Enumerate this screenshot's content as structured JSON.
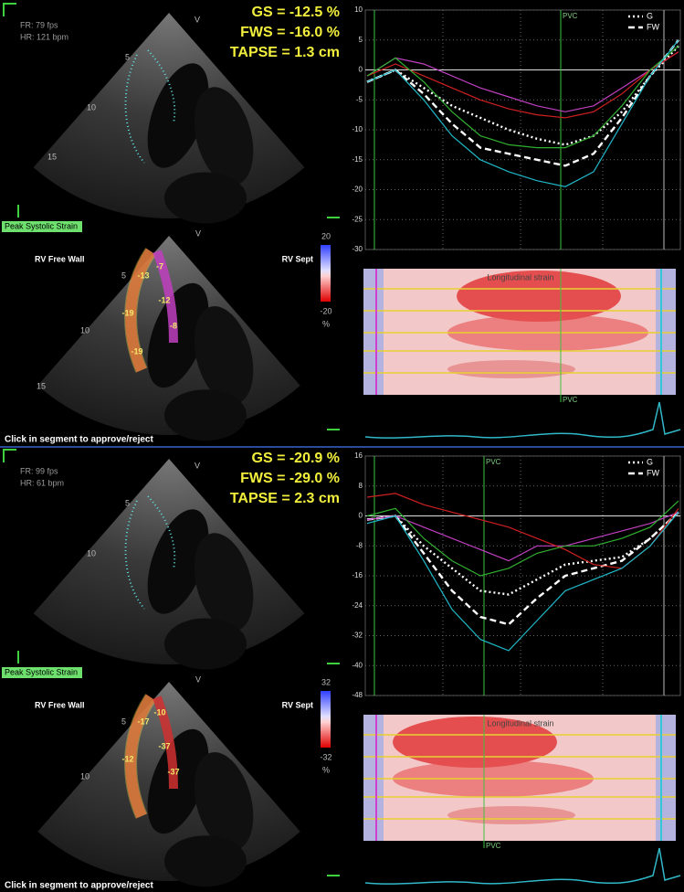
{
  "panels": [
    {
      "fr": "FR: 79 fps",
      "hr": "HR: 121 bpm",
      "gs": "GS = -12.5 %",
      "fws": "FWS = -16.0 %",
      "tapse": "TAPSE = 1.3 cm",
      "depth_labels_a": [
        "5",
        "10",
        "15"
      ],
      "depth_labels_b": [
        "5",
        "10",
        "15"
      ],
      "view_labels": [
        "V",
        "V"
      ],
      "strain_button": "Peak Systolic Strain",
      "free_wall": "RV Free Wall",
      "septum": "RV Sept",
      "colorbar": {
        "max": "20",
        "min": "-20",
        "unit": "%"
      },
      "segments": [
        "-13",
        "-7",
        "-12",
        "-19",
        "-8",
        "-19"
      ],
      "footer": "Click in segment to approve/reject",
      "strain_chart": {
        "type": "line",
        "ylim": [
          -30,
          10
        ],
        "yticks": [
          10,
          5,
          0,
          -5,
          -10,
          -15,
          -20,
          -25,
          -30
        ],
        "marker": "PVC",
        "series": [
          {
            "name": "G",
            "color": "#ffffff",
            "line_style": "dotted",
            "values": [
              -2,
              0,
              -3,
              -6,
              -8,
              -10,
              -11.5,
              -12.5,
              -11,
              -7,
              -1,
              4
            ]
          },
          {
            "name": "FW",
            "color": "#ffffff",
            "line_style": "dashed",
            "values": [
              -2,
              0,
              -4,
              -9,
              -13,
              -14,
              -15,
              -16,
              -14,
              -8,
              -1,
              5
            ]
          },
          {
            "color": "#c040c0",
            "line_style": "solid",
            "values": [
              -1,
              2,
              1,
              -1,
              -3,
              -4.5,
              -6,
              -7,
              -6,
              -3,
              0,
              3
            ]
          },
          {
            "color": "#d02020",
            "line_style": "solid",
            "values": [
              -1,
              1,
              -1,
              -3,
              -5,
              -6.5,
              -7.5,
              -8,
              -7,
              -4,
              0,
              3
            ]
          },
          {
            "color": "#30b030",
            "line_style": "solid",
            "values": [
              -1,
              2,
              -2,
              -7,
              -11,
              -12.5,
              -13,
              -13,
              -11,
              -6,
              0,
              4
            ]
          },
          {
            "color": "#20b8c8",
            "line_style": "solid",
            "values": [
              -2,
              0,
              -5,
              -11,
              -15,
              -17,
              -18.5,
              -19.5,
              -17,
              -9,
              -1,
              5
            ]
          }
        ]
      },
      "heatmap": {
        "title": "Longitudinal strain",
        "marker": "PVC"
      }
    },
    {
      "fr": "FR: 99 fps",
      "hr": "HR: 61 bpm",
      "gs": "GS = -20.9 %",
      "fws": "FWS = -29.0 %",
      "tapse": "TAPSE = 2.3 cm",
      "depth_labels_a": [
        "5",
        "10"
      ],
      "depth_labels_b": [
        "5",
        "10"
      ],
      "view_labels": [
        "V",
        "V"
      ],
      "strain_button": "Peak Systolic Strain",
      "free_wall": "RV Free Wall",
      "septum": "RV Sept",
      "colorbar": {
        "max": "32",
        "min": "-32",
        "unit": "%"
      },
      "segments": [
        "-17",
        "-10",
        "-37",
        "-12",
        "-37"
      ],
      "footer": "Click in segment to approve/reject",
      "strain_chart": {
        "type": "line",
        "ylim": [
          -48,
          16
        ],
        "yticks": [
          16,
          8,
          0,
          -8,
          -16,
          -24,
          -32,
          -40,
          -48
        ],
        "marker": "PVC",
        "series": [
          {
            "name": "G",
            "color": "#ffffff",
            "line_style": "dotted",
            "values": [
              -1,
              0,
              -8,
              -14,
              -20,
              -21,
              -17,
              -13,
              -12,
              -11,
              -6,
              1
            ]
          },
          {
            "name": "FW",
            "color": "#ffffff",
            "line_style": "dashed",
            "values": [
              -1,
              0,
              -10,
              -20,
              -27,
              -29,
              -22,
              -16,
              -14,
              -12,
              -6,
              1
            ]
          },
          {
            "color": "#c040c0",
            "line_style": "solid",
            "values": [
              -1,
              0,
              -3,
              -6,
              -9,
              -12,
              -8,
              -8,
              -6,
              -4,
              -2,
              1
            ]
          },
          {
            "color": "#d02020",
            "line_style": "solid",
            "values": [
              5,
              6,
              3,
              1,
              -1,
              -3,
              -6,
              -9,
              -13,
              -14,
              -8,
              2
            ]
          },
          {
            "color": "#30b030",
            "line_style": "solid",
            "values": [
              0,
              2,
              -6,
              -12,
              -16,
              -14,
              -10,
              -8,
              -8,
              -6,
              -3,
              4
            ]
          },
          {
            "color": "#20b8c8",
            "line_style": "solid",
            "values": [
              -2,
              0,
              -12,
              -25,
              -33,
              -36,
              -28,
              -20,
              -17,
              -14,
              -8,
              1
            ]
          }
        ]
      },
      "heatmap": {
        "title": "Longitudinal strain",
        "marker": "PVC"
      }
    }
  ]
}
